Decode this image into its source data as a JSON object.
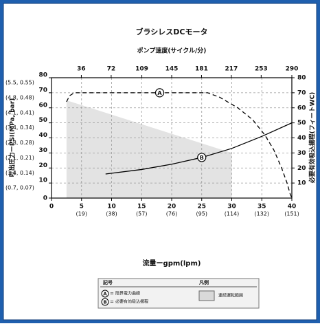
{
  "chart_data": {
    "type": "line",
    "title": "ブラシレスDCモータ",
    "x2_label": "ポンプ速度(サイクル/分)",
    "x_label": "流量ーgpm(lpm)",
    "y_label": "吐出圧力ーPSI(MPa, bar)",
    "y2_label": "必要有効吸込揚程(フィートWC)",
    "xlim": [
      0,
      40
    ],
    "xticks": [
      0,
      {
        "value": 5,
        "label": "5",
        "label2": "(19)"
      },
      {
        "value": 10,
        "label": "10",
        "label2": "(38)"
      },
      {
        "value": 15,
        "label": "15",
        "label2": "(57)"
      },
      {
        "value": 20,
        "label": "20",
        "label2": "(76)"
      },
      {
        "value": 25,
        "label": "25",
        "label2": "(95)"
      },
      {
        "value": 30,
        "label": "30",
        "label2": "(114)"
      },
      {
        "value": 35,
        "label": "35",
        "label2": "(132)"
      },
      {
        "value": 40,
        "label": "40",
        "label2": "(151)"
      }
    ],
    "x2lim": [
      0,
      290
    ],
    "x2ticks": [
      36,
      72,
      109,
      145,
      181,
      217,
      253,
      290
    ],
    "ylim": [
      0,
      80
    ],
    "yticks": [
      0,
      {
        "value": 10,
        "label": "10",
        "label2": "(0.7, 0.07)"
      },
      {
        "value": 20,
        "label": "20",
        "label2": "(1.4, 0.14)"
      },
      {
        "value": 30,
        "label": "30",
        "label2": "(2.1, 0.21)"
      },
      {
        "value": 40,
        "label": "40",
        "label2": "(2.8, 0.28)"
      },
      {
        "value": 50,
        "label": "50",
        "label2": "(3.4, 0.34)"
      },
      {
        "value": 60,
        "label": "60",
        "label2": "(4.1, 0.41)"
      },
      {
        "value": 70,
        "label": "70",
        "label2": "(4.8, 0.48)"
      },
      {
        "value": 80,
        "label": "80",
        "label2": "(5.5, 0.55)"
      }
    ],
    "y2lim": [
      0,
      80
    ],
    "y2ticks": [
      10,
      20,
      30,
      40,
      50,
      60,
      70,
      80
    ],
    "grid": true,
    "series": [
      {
        "name": "限界電力曲線",
        "marker": "A",
        "color": "#000000",
        "dashed": true,
        "marker_at": 18,
        "x": [
          2.5,
          3,
          3.8,
          26,
          28,
          31,
          33.5,
          35.5,
          37,
          38.3,
          39.2,
          39.7,
          40
        ],
        "values": [
          64,
          68,
          70,
          70,
          67,
          60,
          52,
          42,
          32,
          20,
          10,
          3,
          0
        ]
      },
      {
        "name": "必要有効吸込揚程",
        "marker": "B",
        "color": "#000000",
        "axis": "y2",
        "marker_at": 25,
        "x": [
          9,
          15,
          20,
          25,
          30,
          35,
          40
        ],
        "values": [
          16,
          19,
          22.5,
          27,
          33,
          41,
          50
        ]
      }
    ],
    "area": {
      "name": "連続運転範囲",
      "color": "#e3e3e3",
      "x": [
        2.5,
        30
      ],
      "values": [
        65,
        30
      ]
    },
    "legend_headers": [
      "記号",
      "凡例"
    ],
    "legend_separator": "="
  }
}
